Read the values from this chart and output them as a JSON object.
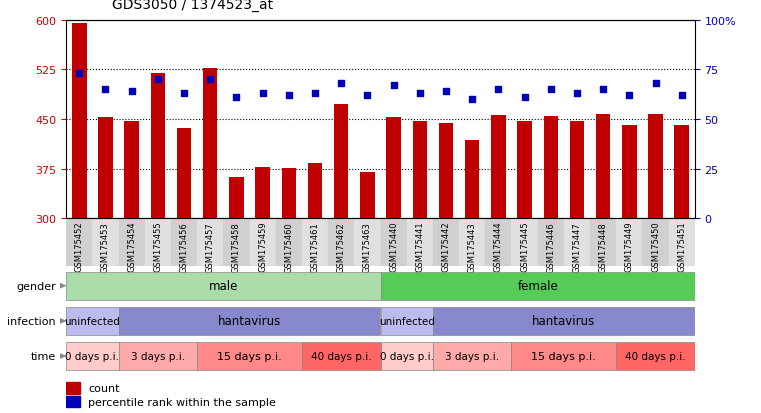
{
  "title": "GDS3050 / 1374523_at",
  "samples": [
    "GSM175452",
    "GSM175453",
    "GSM175454",
    "GSM175455",
    "GSM175456",
    "GSM175457",
    "GSM175458",
    "GSM175459",
    "GSM175460",
    "GSM175461",
    "GSM175462",
    "GSM175463",
    "GSM175440",
    "GSM175441",
    "GSM175442",
    "GSM175443",
    "GSM175444",
    "GSM175445",
    "GSM175446",
    "GSM175447",
    "GSM175448",
    "GSM175449",
    "GSM175450",
    "GSM175451"
  ],
  "counts": [
    595,
    453,
    447,
    519,
    437,
    527,
    362,
    378,
    376,
    383,
    473,
    370,
    453,
    447,
    444,
    418,
    456,
    447,
    454,
    447,
    457,
    441,
    458,
    441
  ],
  "percentile_ranks": [
    73,
    65,
    64,
    70,
    63,
    70,
    61,
    63,
    62,
    63,
    68,
    62,
    67,
    63,
    64,
    60,
    65,
    61,
    65,
    63,
    65,
    62,
    68,
    62
  ],
  "ylim_left": [
    300,
    600
  ],
  "ylim_right": [
    0,
    100
  ],
  "yticks_left": [
    300,
    375,
    450,
    525,
    600
  ],
  "yticks_right": [
    0,
    25,
    50,
    75,
    100
  ],
  "bar_color": "#C00000",
  "dot_color": "#0000BB",
  "plot_bg": "#FFFFFF",
  "label_bg_even": "#D0D0D0",
  "label_bg_odd": "#E0E0E0",
  "gender_groups": [
    {
      "label": "male",
      "start": 0,
      "end": 12,
      "color": "#AADDAA"
    },
    {
      "label": "female",
      "start": 12,
      "end": 24,
      "color": "#55CC55"
    }
  ],
  "infection_groups": [
    {
      "label": "uninfected",
      "start": 0,
      "end": 2,
      "color": "#BBBBEE"
    },
    {
      "label": "hantavirus",
      "start": 2,
      "end": 12,
      "color": "#8888CC"
    },
    {
      "label": "uninfected",
      "start": 12,
      "end": 14,
      "color": "#BBBBEE"
    },
    {
      "label": "hantavirus",
      "start": 14,
      "end": 24,
      "color": "#8888CC"
    }
  ],
  "time_groups": [
    {
      "label": "0 days p.i.",
      "start": 0,
      "end": 2,
      "color": "#FFCCCC"
    },
    {
      "label": "3 days p.i.",
      "start": 2,
      "end": 5,
      "color": "#FFAAAA"
    },
    {
      "label": "15 days p.i.",
      "start": 5,
      "end": 9,
      "color": "#FF8888"
    },
    {
      "label": "40 days p.i.",
      "start": 9,
      "end": 12,
      "color": "#FF6666"
    },
    {
      "label": "0 days p.i.",
      "start": 12,
      "end": 14,
      "color": "#FFCCCC"
    },
    {
      "label": "3 days p.i.",
      "start": 14,
      "end": 17,
      "color": "#FFAAAA"
    },
    {
      "label": "15 days p.i.",
      "start": 17,
      "end": 21,
      "color": "#FF8888"
    },
    {
      "label": "40 days p.i.",
      "start": 21,
      "end": 24,
      "color": "#FF6666"
    }
  ],
  "legend_count_label": "count",
  "legend_pct_label": "percentile rank within the sample"
}
